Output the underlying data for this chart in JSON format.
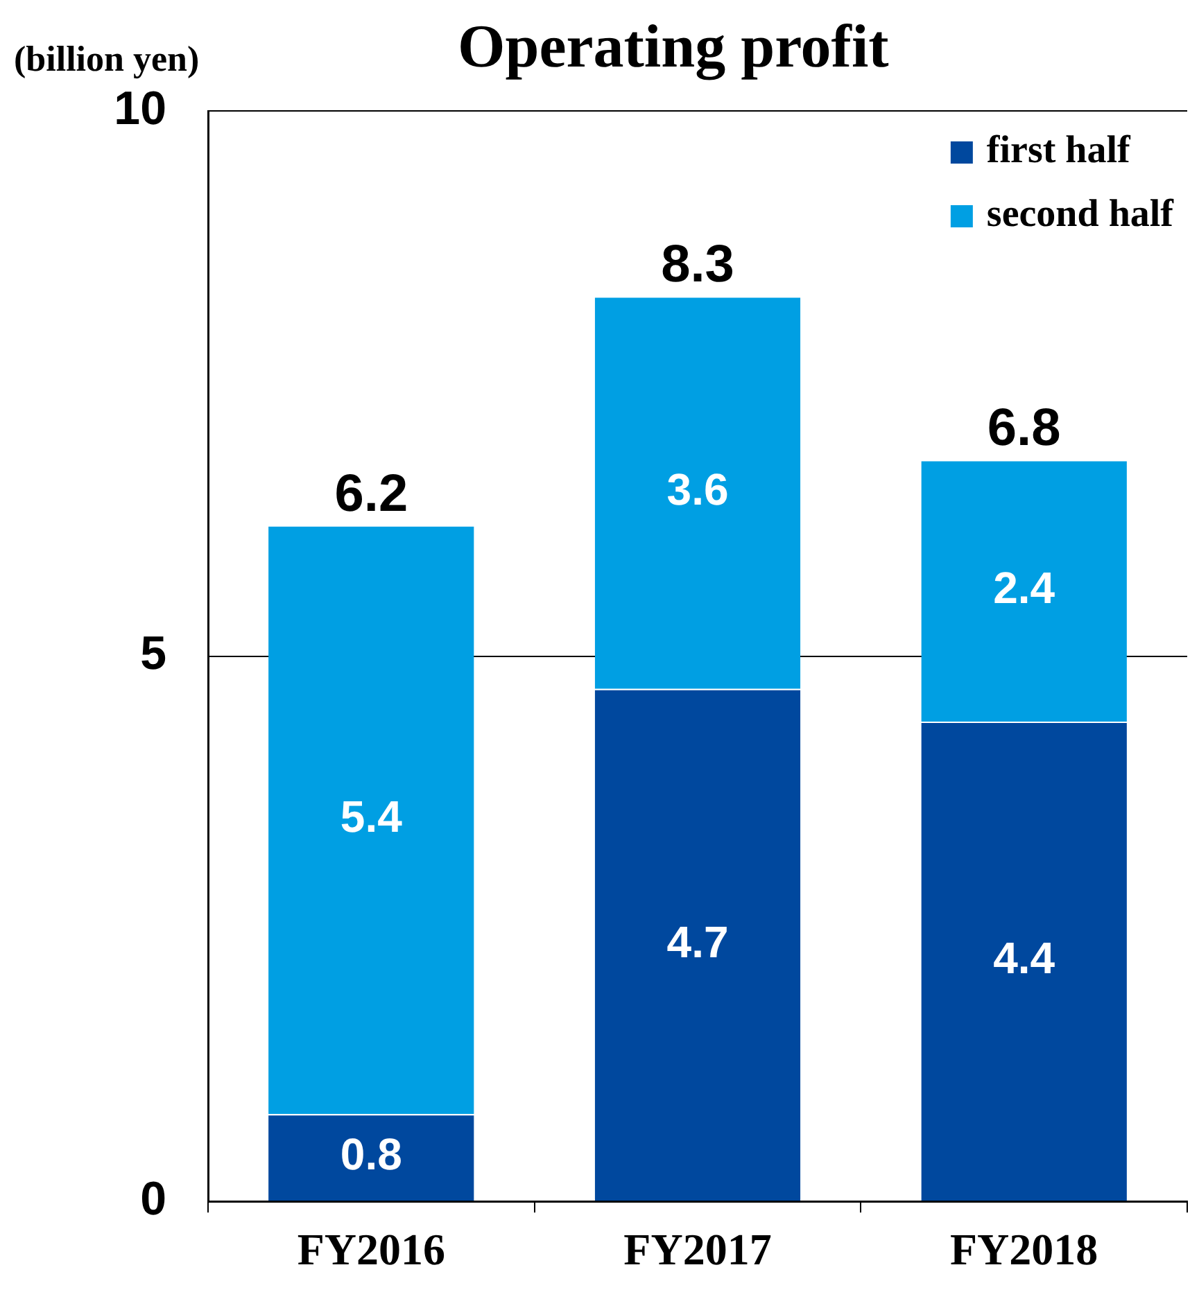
{
  "chart_data": {
    "type": "bar",
    "title": "Operating profit",
    "ylabel": "(billion yen)",
    "categories": [
      "FY2016",
      "FY2017",
      "FY2018"
    ],
    "stacked": true,
    "series": [
      {
        "name": "first half",
        "color": "#00489e",
        "values": [
          0.8,
          4.7,
          4.4
        ]
      },
      {
        "name": "second half",
        "color": "#009fe3",
        "values": [
          5.4,
          3.6,
          2.4
        ]
      }
    ],
    "ylim": [
      0,
      10
    ],
    "yticks": [
      0,
      5,
      10
    ],
    "grid": "y",
    "legend": "top right",
    "data_labels": true,
    "totals": [
      "6.2",
      "8.3",
      "6.8"
    ]
  }
}
